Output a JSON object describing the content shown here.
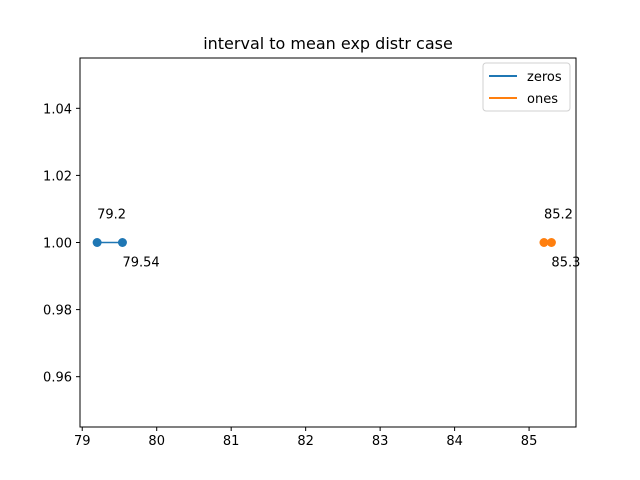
{
  "chart_data": {
    "type": "line",
    "title": "interval to mean exp distr case",
    "xlabel": "",
    "ylabel": "",
    "xlim": [
      78.97,
      85.63
    ],
    "ylim": [
      0.945,
      1.055
    ],
    "xticks": [
      79,
      80,
      81,
      82,
      83,
      84,
      85
    ],
    "yticks": [
      0.96,
      0.98,
      1.0,
      1.02,
      1.04
    ],
    "ytick_labels": [
      "0.96",
      "0.98",
      "1.00",
      "1.02",
      "1.04"
    ],
    "grid": false,
    "legend_position": "top-right",
    "series": [
      {
        "name": "zeros",
        "color": "#1f77b4",
        "x": [
          79.2,
          79.54
        ],
        "y": [
          1.0,
          1.0
        ],
        "labels": [
          "79.2",
          "79.54"
        ]
      },
      {
        "name": "ones",
        "color": "#ff7f0e",
        "x": [
          85.2,
          85.3
        ],
        "y": [
          1.0,
          1.0
        ],
        "labels": [
          "85.2",
          "85.3"
        ]
      }
    ]
  }
}
